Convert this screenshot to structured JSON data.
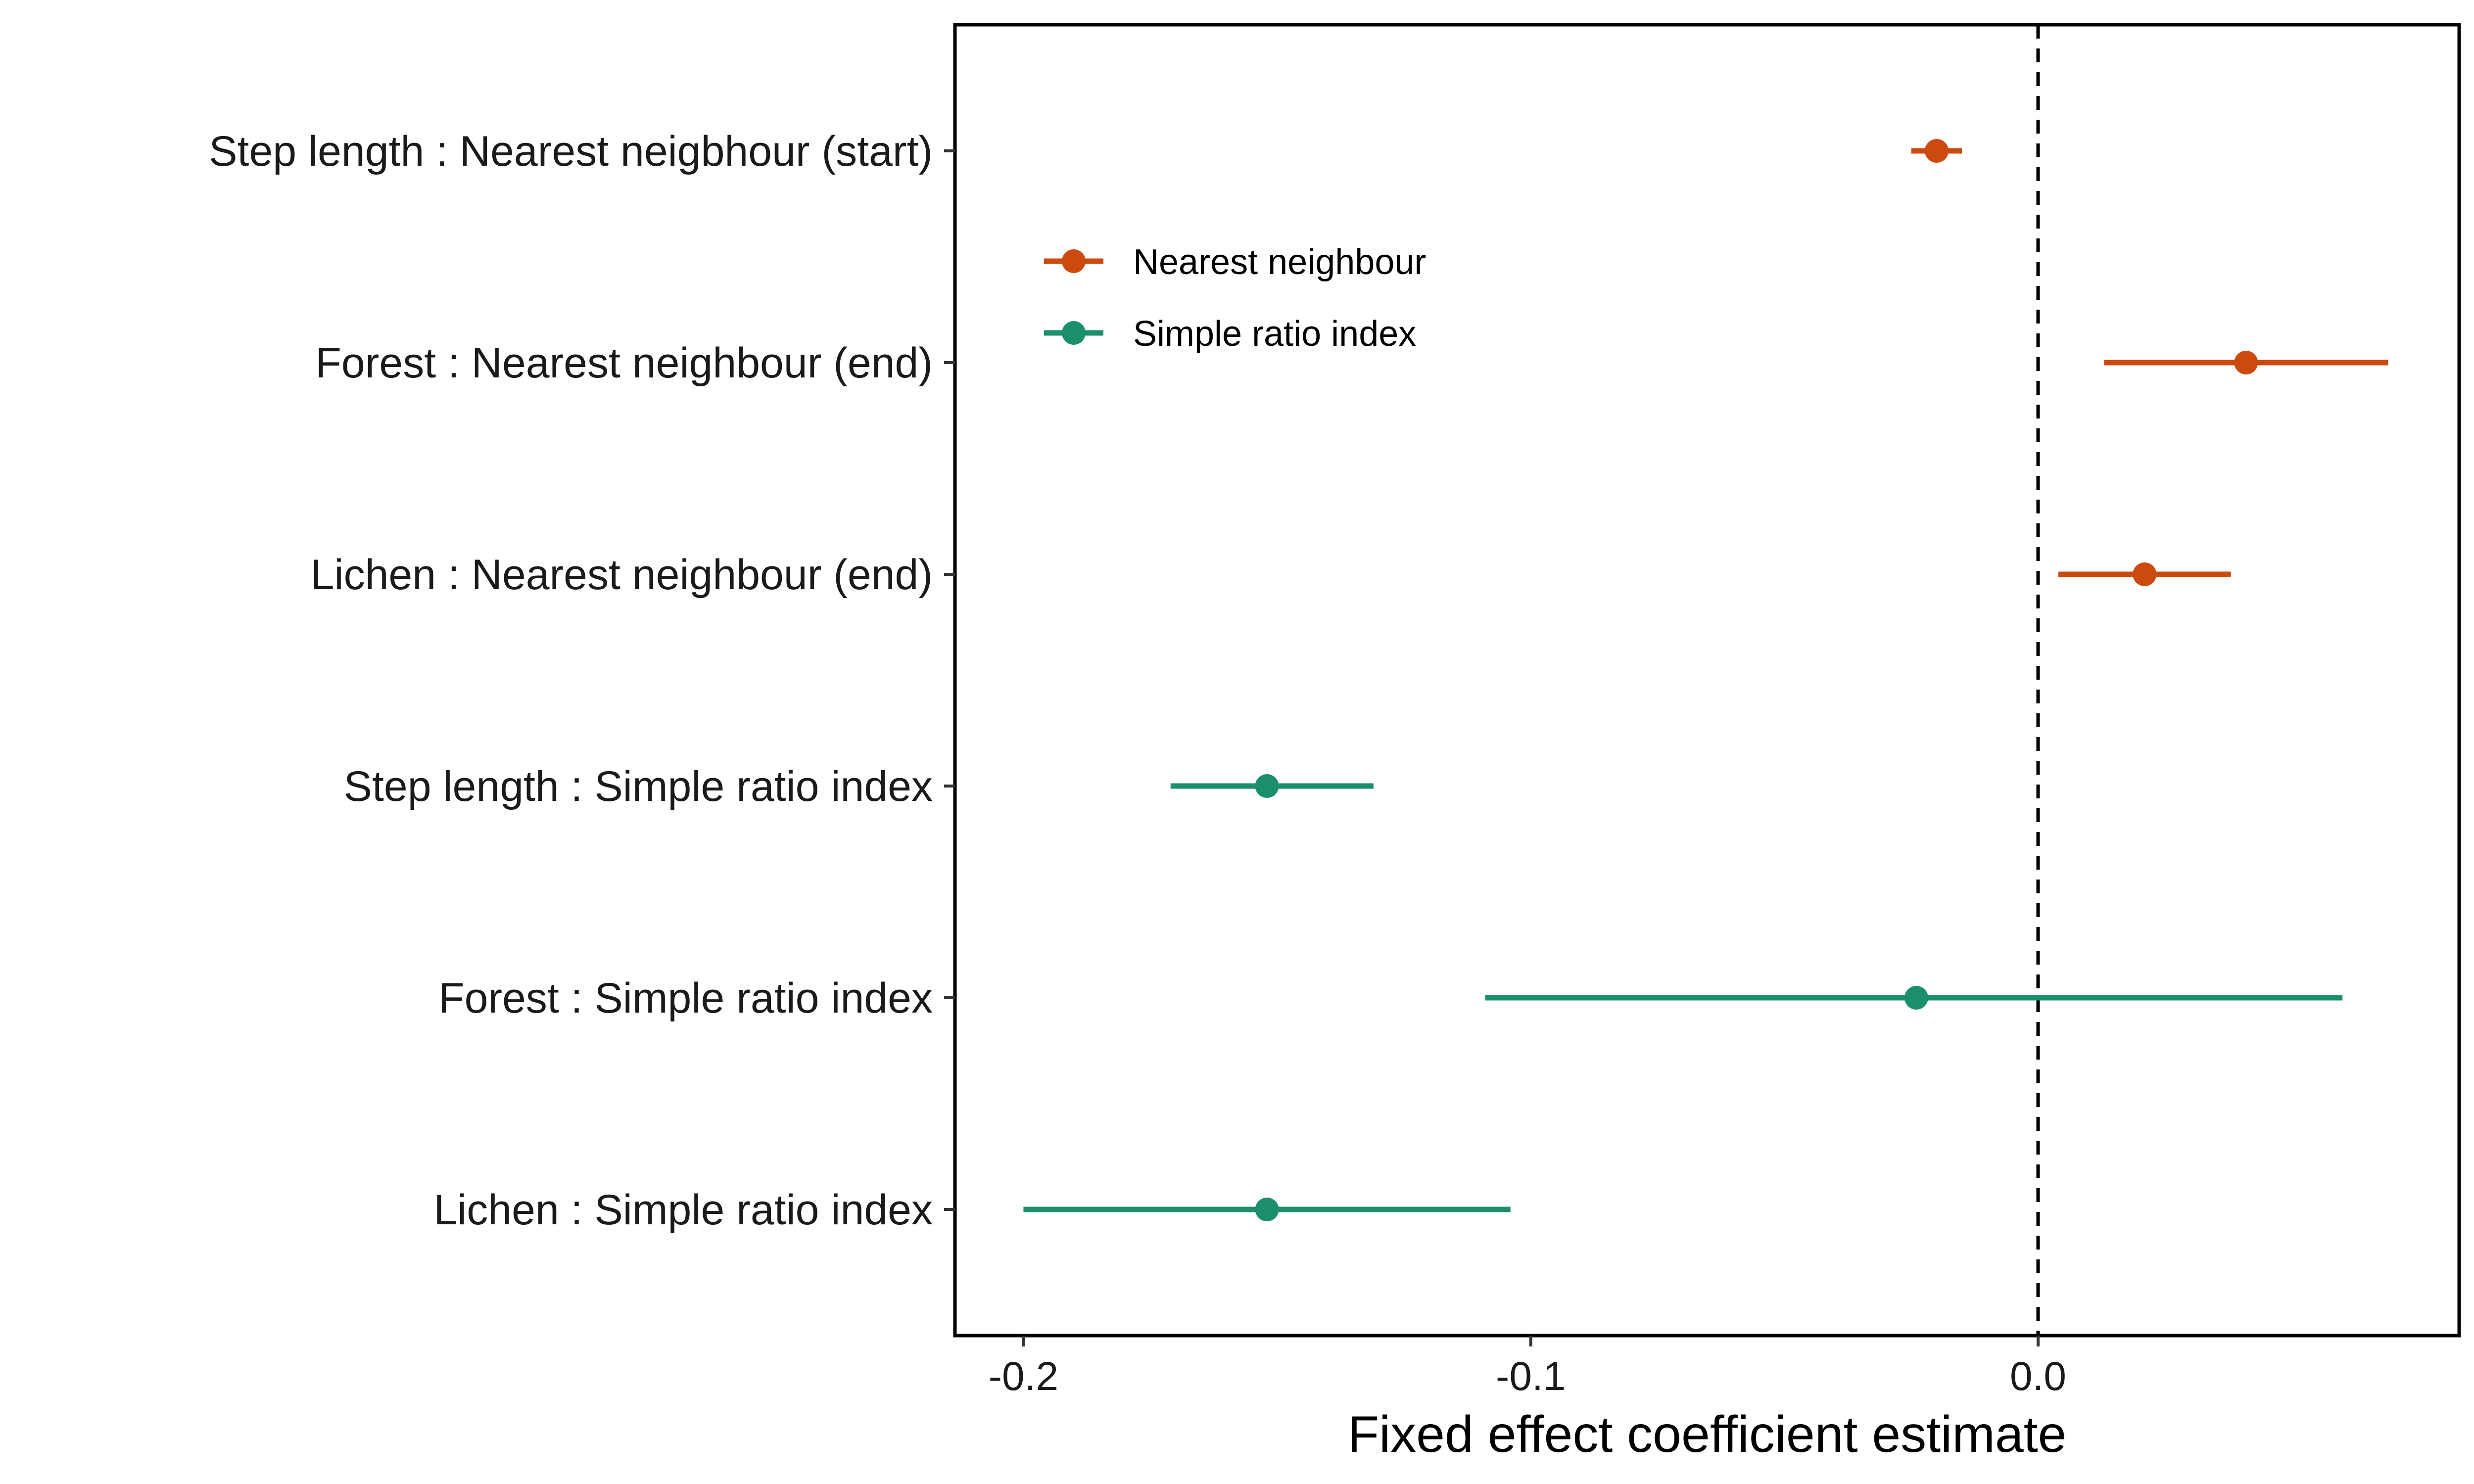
{
  "chart_data": {
    "type": "forest",
    "xlabel": "Fixed effect coefficient estimate",
    "xlim": [
      -0.2135,
      0.083
    ],
    "x_ticks": [
      -0.2,
      -0.1,
      0.0
    ],
    "x_tick_labels": [
      "-0.2",
      "-0.1",
      "0.0"
    ],
    "reference_line": 0.0,
    "grid": false,
    "legend_position": "top-left",
    "categories": [
      "Step length : Nearest neigbhour (start)",
      "Forest : Nearest neighbour (end)",
      "Lichen : Nearest neighbour (end)",
      "Step length : Simple ratio index",
      "Forest : Simple ratio index",
      "Lichen : Simple ratio index"
    ],
    "series": [
      {
        "name": "Nearest neighbour",
        "color": "#CC4A0E",
        "points": [
          {
            "category": "Step length : Nearest neigbhour (start)",
            "estimate": -0.02,
            "lower": -0.025,
            "upper": -0.015
          },
          {
            "category": "Forest : Nearest neighbour (end)",
            "estimate": 0.041,
            "lower": 0.013,
            "upper": 0.069
          },
          {
            "category": "Lichen : Nearest neighbour (end)",
            "estimate": 0.021,
            "lower": 0.004,
            "upper": 0.038
          }
        ]
      },
      {
        "name": "Simple ratio index",
        "color": "#1B8F6C",
        "points": [
          {
            "category": "Step length : Simple ratio index",
            "estimate": -0.152,
            "lower": -0.171,
            "upper": -0.131
          },
          {
            "category": "Forest : Simple ratio index",
            "estimate": -0.024,
            "lower": -0.109,
            "upper": 0.06
          },
          {
            "category": "Lichen : Simple ratio index",
            "estimate": -0.152,
            "lower": -0.2,
            "upper": -0.104
          }
        ]
      }
    ]
  }
}
